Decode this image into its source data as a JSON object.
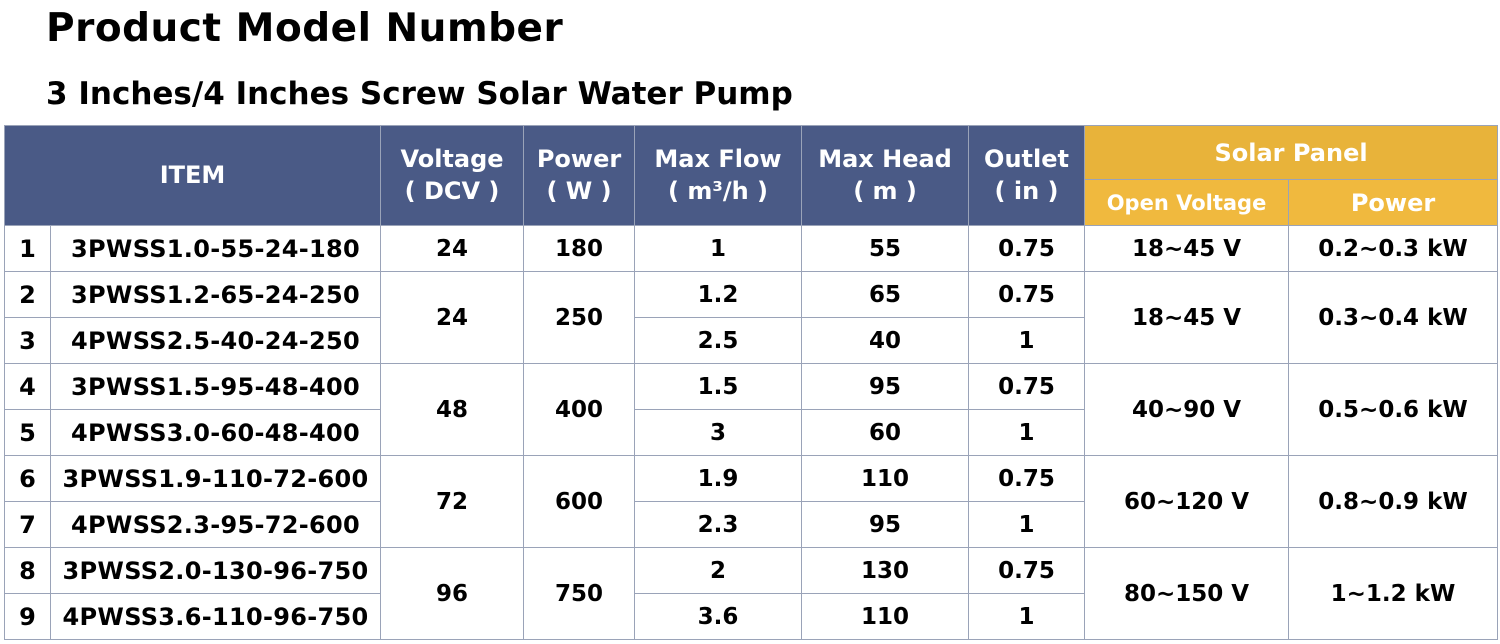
{
  "title": "Product Model Number",
  "subtitle": "3 Inches/4 Inches Screw Solar Water Pump",
  "headers": {
    "item": "ITEM",
    "voltage": "Voltage",
    "voltage_unit": "( DCV )",
    "power": "Power",
    "power_unit": "( W )",
    "flow": "Max Flow",
    "flow_unit": "( m³/h )",
    "head": "Max Head",
    "head_unit": "( m )",
    "outlet": "Outlet",
    "outlet_unit": "( in )",
    "solar_panel": "Solar Panel",
    "open_voltage": "Open Voltage",
    "panel_power": "Power"
  },
  "rows": [
    {
      "no": "1",
      "model": "3PWSS1.0-55-24-180",
      "flow": "1",
      "head": "55",
      "outlet": "0.75"
    },
    {
      "no": "2",
      "model": "3PWSS1.2-65-24-250",
      "flow": "1.2",
      "head": "65",
      "outlet": "0.75"
    },
    {
      "no": "3",
      "model": "4PWSS2.5-40-24-250",
      "flow": "2.5",
      "head": "40",
      "outlet": "1"
    },
    {
      "no": "4",
      "model": "3PWSS1.5-95-48-400",
      "flow": "1.5",
      "head": "95",
      "outlet": "0.75"
    },
    {
      "no": "5",
      "model": "4PWSS3.0-60-48-400",
      "flow": "3",
      "head": "60",
      "outlet": "1"
    },
    {
      "no": "6",
      "model": "3PWSS1.9-110-72-600",
      "flow": "1.9",
      "head": "110",
      "outlet": "0.75"
    },
    {
      "no": "7",
      "model": "4PWSS2.3-95-72-600",
      "flow": "2.3",
      "head": "95",
      "outlet": "1"
    },
    {
      "no": "8",
      "model": "3PWSS2.0-130-96-750",
      "flow": "2",
      "head": "130",
      "outlet": "0.75"
    },
    {
      "no": "9",
      "model": "4PWSS3.6-110-96-750",
      "flow": "3.6",
      "head": "110",
      "outlet": "1"
    }
  ],
  "groups": [
    {
      "voltage": "24",
      "power": "180",
      "open_voltage": "18~45 V",
      "panel_power": "0.2~0.3 kW"
    },
    {
      "voltage": "24",
      "power": "250",
      "open_voltage": "18~45 V",
      "panel_power": "0.3~0.4 kW"
    },
    {
      "voltage": "48",
      "power": "400",
      "open_voltage": "40~90 V",
      "panel_power": "0.5~0.6 kW"
    },
    {
      "voltage": "72",
      "power": "600",
      "open_voltage": "60~120 V",
      "panel_power": "0.8~0.9 kW"
    },
    {
      "voltage": "96",
      "power": "750",
      "open_voltage": "80~150 V",
      "panel_power": "1~1.2 kW"
    }
  ],
  "colors": {
    "header_bg": "#4a5a86",
    "solar_bg": "#e8b33a"
  }
}
